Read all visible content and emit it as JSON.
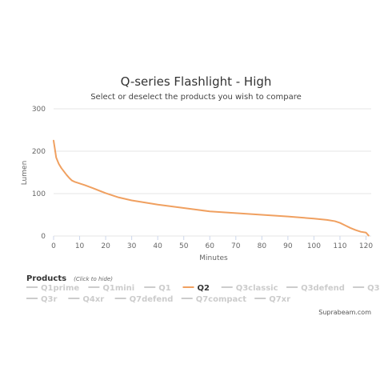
{
  "chart_data": {
    "type": "line",
    "title": "Q-series Flashlight - High",
    "subtitle": "Select or deselect the products you wish to compare",
    "xlabel": "Minutes",
    "ylabel": "Lumen",
    "xlim": [
      0,
      122
    ],
    "ylim": [
      0,
      300
    ],
    "x_ticks": [
      0,
      10,
      20,
      30,
      40,
      50,
      60,
      70,
      80,
      90,
      100,
      110,
      120
    ],
    "y_ticks": [
      0,
      100,
      200,
      300
    ],
    "grid": "horizontal",
    "series": [
      {
        "name": "Q2",
        "color": "#f0a060",
        "x": [
          0,
          1,
          2,
          3,
          4,
          5,
          6,
          7,
          8,
          10,
          12,
          15,
          20,
          25,
          30,
          35,
          40,
          45,
          50,
          55,
          60,
          70,
          80,
          90,
          100,
          105,
          108,
          110,
          112,
          114,
          116,
          118,
          120,
          121
        ],
        "y": [
          225,
          185,
          170,
          160,
          152,
          144,
          137,
          131,
          128,
          124,
          120,
          113,
          101,
          91,
          84,
          79,
          74,
          70,
          66,
          62,
          58,
          54,
          50,
          46,
          41,
          38,
          35,
          31,
          25,
          19,
          14,
          10,
          8,
          1
        ]
      }
    ]
  },
  "legend": {
    "title": "Products",
    "hint": "(Click to hide)",
    "items": [
      {
        "label": "Q1prime",
        "active": false
      },
      {
        "label": "Q1mini",
        "active": false
      },
      {
        "label": "Q1",
        "active": false
      },
      {
        "label": "Q2",
        "active": true
      },
      {
        "label": "Q3classic",
        "active": false
      },
      {
        "label": "Q3defend",
        "active": false
      },
      {
        "label": "Q3",
        "active": false
      },
      {
        "label": "Q3r",
        "active": false
      },
      {
        "label": "Q4xr",
        "active": false
      },
      {
        "label": "Q7defend",
        "active": false
      },
      {
        "label": "Q7compact",
        "active": false
      },
      {
        "label": "Q7xr",
        "active": false
      }
    ]
  },
  "credits": "Suprabeam.com",
  "colors": {
    "active_series": "#f0a060",
    "inactive": "#cccccc",
    "grid": "#e6e6e6",
    "axis": "#ccd6eb"
  }
}
